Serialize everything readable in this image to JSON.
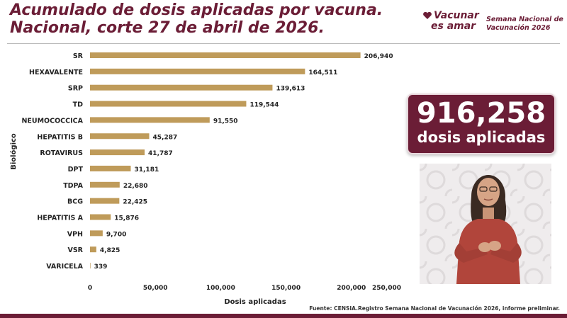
{
  "header": {
    "title_line1": "Acumulado de dosis aplicadas por vacuna.",
    "title_line2": "Nacional, corte 27 de abril de 2026.",
    "logo_line1": "Vacunar",
    "logo_line2": "es amar",
    "campaign_line1": "Semana Nacional de",
    "campaign_line2": "Vacunación 2026"
  },
  "summary": {
    "total": "916,258",
    "label": "dosis aplicadas"
  },
  "footer": {
    "source": "Fuente: CENSIA.Registro Semana Nacional de Vacunación 2026, informe preliminar."
  },
  "colors": {
    "accent": "#6b1d36",
    "bar": "#bf9b5a"
  },
  "chart_data": {
    "type": "bar",
    "orientation": "horizontal",
    "title": "",
    "xlabel": "Dosis aplicadas",
    "ylabel": "Biológico",
    "categories": [
      "SR",
      "HEXAVALENTE",
      "SRP",
      "TD",
      "NEUMOCOCCICA",
      "HEPATITIS B",
      "ROTAVIRUS",
      "DPT",
      "TDPA",
      "BCG",
      "HEPATITIS A",
      "VPH",
      "VSR",
      "VARICELA"
    ],
    "values": [
      206940,
      164511,
      139613,
      119544,
      91550,
      45287,
      41787,
      31181,
      22680,
      22425,
      15876,
      9700,
      4825,
      339
    ],
    "value_labels": [
      "206,940",
      "164,511",
      "139,613",
      "119,544",
      "91,550",
      "45,287",
      "41,787",
      "31,181",
      "22,680",
      "22,425",
      "15,876",
      "9,700",
      "4,825",
      "339"
    ],
    "xlim": [
      0,
      250000
    ],
    "xticks": [
      0,
      50000,
      100000,
      150000,
      200000,
      250000
    ],
    "xtick_labels": [
      "0",
      "50,000",
      "100,000",
      "150,000",
      "200,000",
      "250,000"
    ],
    "grid": false,
    "legend": "none"
  }
}
